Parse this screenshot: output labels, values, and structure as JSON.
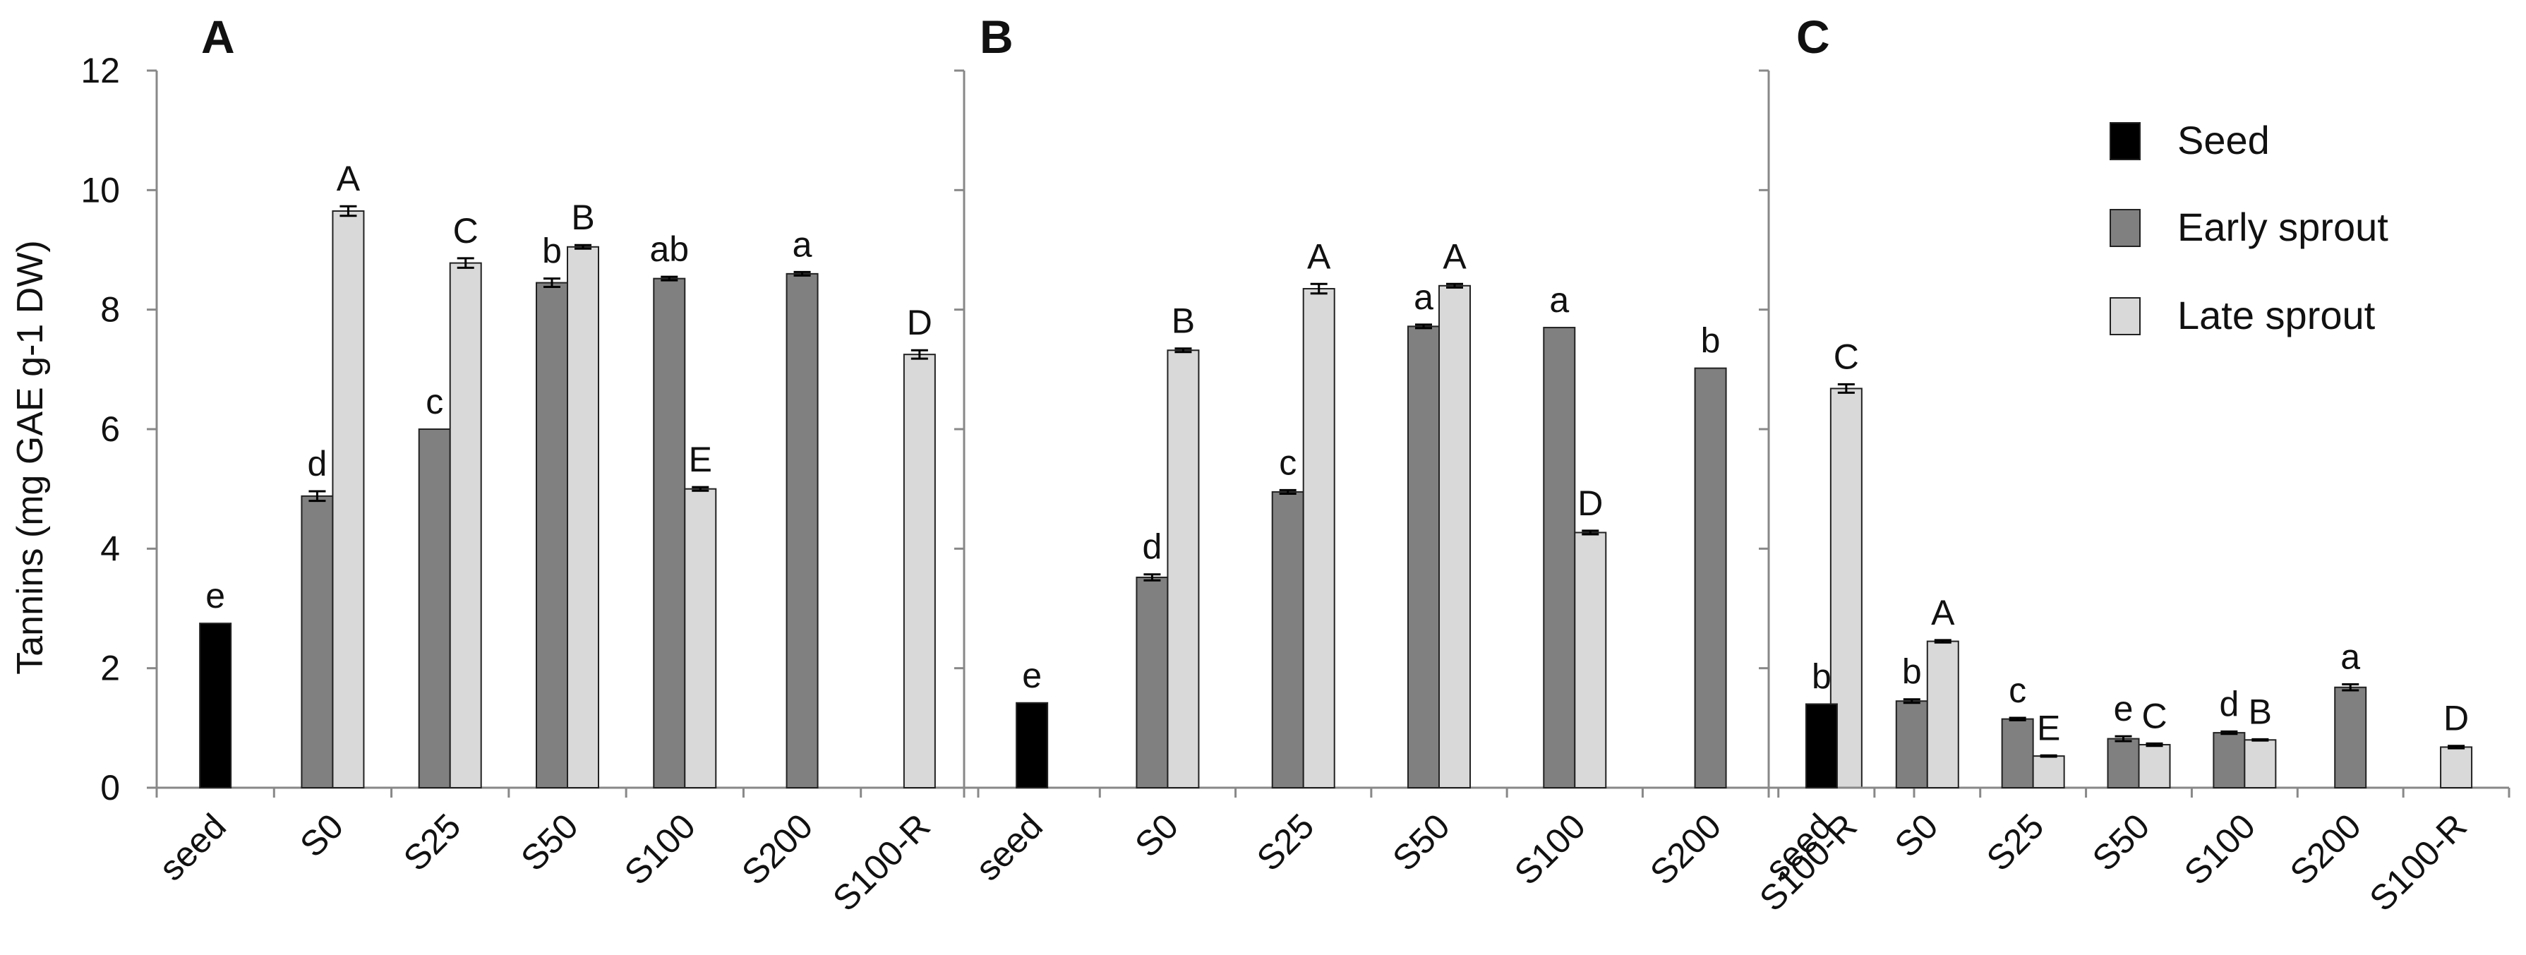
{
  "chart_data": [
    {
      "type": "bar",
      "panel": "A",
      "ylabel": "Tannins (mg GAE g-1 DW)",
      "ylim": [
        0,
        12
      ],
      "yticks": [
        0,
        2,
        4,
        6,
        8,
        10,
        12
      ],
      "categories": [
        "seed",
        "S0",
        "S25",
        "S50",
        "S100",
        "S200",
        "S100-R"
      ],
      "series": [
        {
          "name": "Seed",
          "values": [
            2.75,
            null,
            null,
            null,
            null,
            null,
            null
          ],
          "errors": [
            0,
            null,
            null,
            null,
            null,
            null,
            null
          ],
          "letters": [
            "e",
            "",
            "",
            "",
            "",
            "",
            ""
          ]
        },
        {
          "name": "Early sprout",
          "values": [
            null,
            4.88,
            6.0,
            8.45,
            8.52,
            8.6,
            null
          ],
          "errors": [
            null,
            0.08,
            0,
            0.07,
            0.03,
            0.03,
            null
          ],
          "letters": [
            "",
            "d",
            "c",
            "b",
            "ab",
            "a",
            ""
          ]
        },
        {
          "name": "Late sprout",
          "values": [
            null,
            9.65,
            8.78,
            9.05,
            5.0,
            null,
            7.25
          ],
          "errors": [
            null,
            0.08,
            0.08,
            0.03,
            0.03,
            null,
            0.07
          ],
          "letters": [
            "",
            "A",
            "C",
            "B",
            "E",
            "",
            "D"
          ]
        }
      ]
    },
    {
      "type": "bar",
      "panel": "B",
      "ylim": [
        0,
        12
      ],
      "categories": [
        "seed",
        "S0",
        "S25",
        "S50",
        "S100",
        "S200",
        "S100-R"
      ],
      "series": [
        {
          "name": "Seed",
          "values": [
            1.42,
            null,
            null,
            null,
            null,
            null,
            null
          ],
          "errors": [
            0,
            null,
            null,
            null,
            null,
            null,
            null
          ],
          "letters": [
            "e",
            "",
            "",
            "",
            "",
            "",
            ""
          ]
        },
        {
          "name": "Early sprout",
          "values": [
            null,
            3.52,
            4.95,
            7.72,
            7.7,
            7.02,
            null
          ],
          "errors": [
            null,
            0.05,
            0.03,
            0.03,
            0,
            0,
            null
          ],
          "letters": [
            "",
            "d",
            "c",
            "a",
            "a",
            "b",
            ""
          ]
        },
        {
          "name": "Late sprout",
          "values": [
            null,
            7.32,
            8.35,
            8.4,
            4.27,
            null,
            6.68
          ],
          "errors": [
            null,
            0.03,
            0.08,
            0.03,
            0.03,
            null,
            0.07
          ],
          "letters": [
            "",
            "B",
            "A",
            "A",
            "D",
            "",
            "C"
          ]
        }
      ]
    },
    {
      "type": "bar",
      "panel": "C",
      "ylim": [
        0,
        12
      ],
      "categories": [
        "seed",
        "S0",
        "S25",
        "S50",
        "S100",
        "S200",
        "S100-R"
      ],
      "series": [
        {
          "name": "Seed",
          "values": [
            1.4,
            null,
            null,
            null,
            null,
            null,
            null
          ],
          "errors": [
            0,
            null,
            null,
            null,
            null,
            null,
            null
          ],
          "letters": [
            "b",
            "",
            "",
            "",
            "",
            "",
            ""
          ]
        },
        {
          "name": "Early sprout",
          "values": [
            null,
            1.45,
            1.15,
            0.82,
            0.92,
            1.68,
            null
          ],
          "errors": [
            null,
            0.03,
            0.02,
            0.04,
            0.02,
            0.05,
            null
          ],
          "letters": [
            "",
            "b",
            "c",
            "e",
            "d",
            "a",
            ""
          ]
        },
        {
          "name": "Late sprout",
          "values": [
            null,
            2.45,
            0.53,
            0.72,
            0.8,
            null,
            0.68
          ],
          "errors": [
            null,
            0.02,
            0.01,
            0.02,
            0.01,
            null,
            0.02
          ],
          "letters": [
            "",
            "A",
            "E",
            "C",
            "B",
            "",
            "D"
          ]
        }
      ]
    }
  ],
  "legend": {
    "items": [
      {
        "label": "Seed",
        "color": "#000000"
      },
      {
        "label": "Early sprout",
        "color": "#808080"
      },
      {
        "label": "Late sprout",
        "color": "#d9d9d9"
      }
    ]
  },
  "colors": {
    "seed": "#000000",
    "early": "#808080",
    "late": "#d9d9d9",
    "axis": "#888888",
    "stroke": "#222222"
  }
}
